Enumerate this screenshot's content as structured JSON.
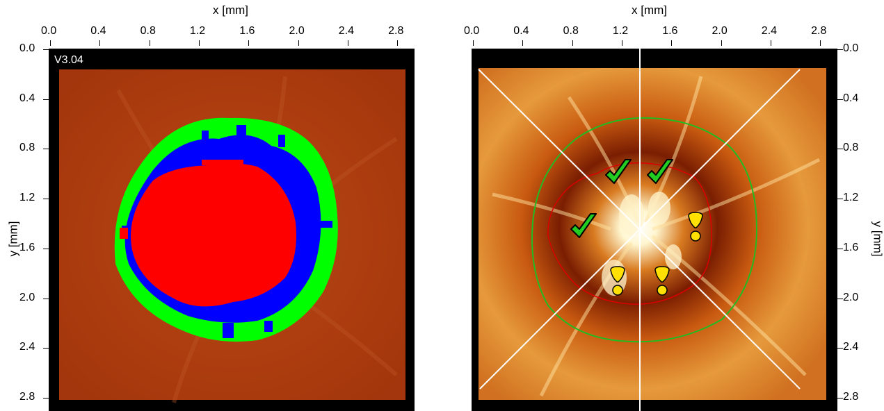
{
  "left_panel": {
    "version_label": "V3.04",
    "x_axis": {
      "label": "x [mm]",
      "ticks": [
        "0.0",
        "0.4",
        "0.8",
        "1.2",
        "1.6",
        "2.0",
        "2.4",
        "2.8"
      ]
    },
    "y_axis": {
      "label": "y [mm]",
      "ticks": [
        "0.0",
        "0.4",
        "0.8",
        "1.2",
        "1.6",
        "2.0",
        "2.4",
        "2.8"
      ]
    },
    "colors": {
      "outer_ring": "#00ff00",
      "middle_ring": "#0000ff",
      "inner_region": "#ff0000",
      "background": "#b3400f"
    }
  },
  "right_panel": {
    "x_axis": {
      "label": "x [mm]",
      "ticks": [
        "0.0",
        "0.4",
        "0.8",
        "1.2",
        "1.6",
        "2.0",
        "2.4",
        "2.8"
      ]
    },
    "y_axis": {
      "label": "y [mm]",
      "ticks": [
        "0.0",
        "0.4",
        "0.8",
        "1.2",
        "1.6",
        "2.0",
        "2.4",
        "2.8"
      ]
    },
    "colors": {
      "outer_contour": "#22bb22",
      "inner_contour": "#dd0000",
      "sector_lines": "#ffffff",
      "check_mark": "#22cc22",
      "hourglass": "#ffe000"
    },
    "markers": [
      {
        "type": "check-icon",
        "sector": "superior-left"
      },
      {
        "type": "check-icon",
        "sector": "superior-right"
      },
      {
        "type": "check-icon",
        "sector": "nasal-left"
      },
      {
        "type": "hourglass-icon",
        "sector": "temporal-right"
      },
      {
        "type": "hourglass-icon",
        "sector": "inferior-left"
      },
      {
        "type": "hourglass-icon",
        "sector": "inferior-right"
      }
    ]
  }
}
